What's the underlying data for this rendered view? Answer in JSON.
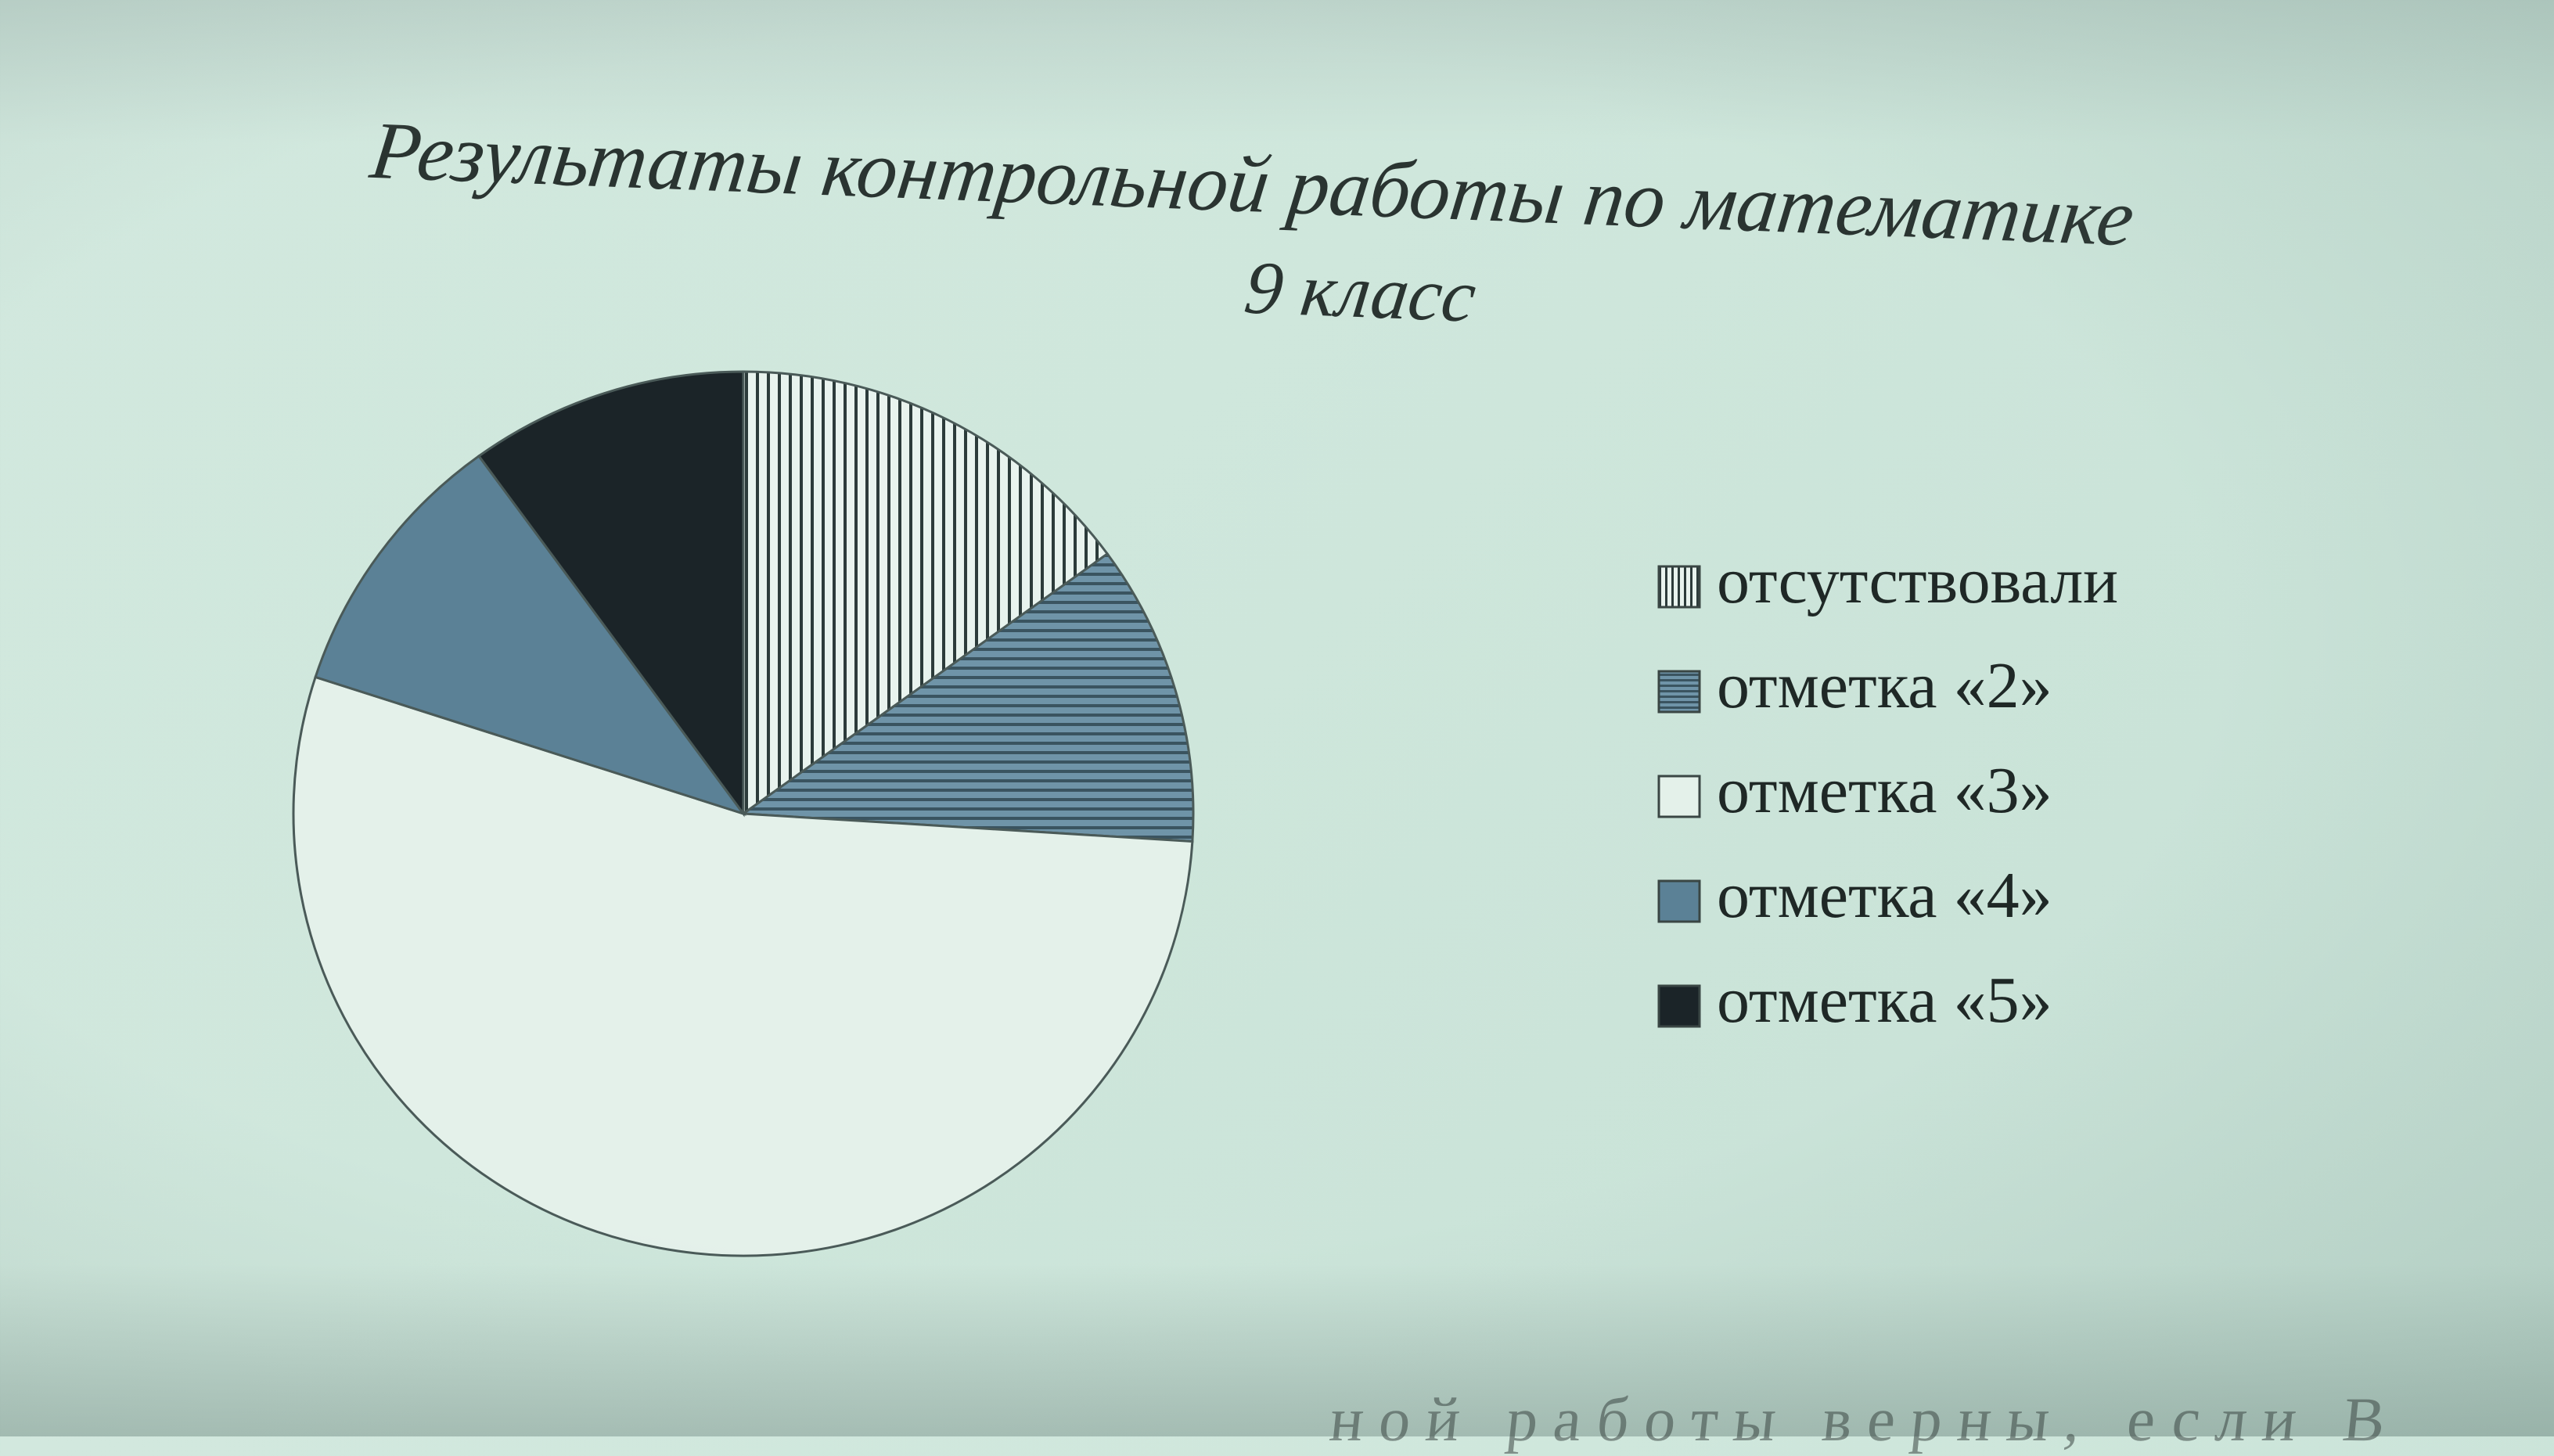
{
  "chart_data": {
    "type": "pie",
    "title": "Результаты контрольной работы по математике",
    "subtitle": "9 класс",
    "start_angle_deg": 0,
    "direction": "clockwise",
    "legend_position": "right",
    "slices": [
      {
        "label": "отсутствовали",
        "value": 15,
        "fill": "vertical-stripes",
        "color": "#2c3b3a"
      },
      {
        "label": "отметка «2»",
        "value": 11,
        "fill": "horizontal-stripes",
        "color": "#3a5460"
      },
      {
        "label": "отметка «3»",
        "value": 54,
        "fill": "solid",
        "color": "#e4f1ea"
      },
      {
        "label": "отметка «4»",
        "value": 10,
        "fill": "solid",
        "color": "#5b8196"
      },
      {
        "label": "отметка «5»",
        "value": 10,
        "fill": "solid",
        "color": "#1b2428"
      }
    ]
  },
  "footer": {
    "partial_text": "ной работы верны, если В"
  }
}
